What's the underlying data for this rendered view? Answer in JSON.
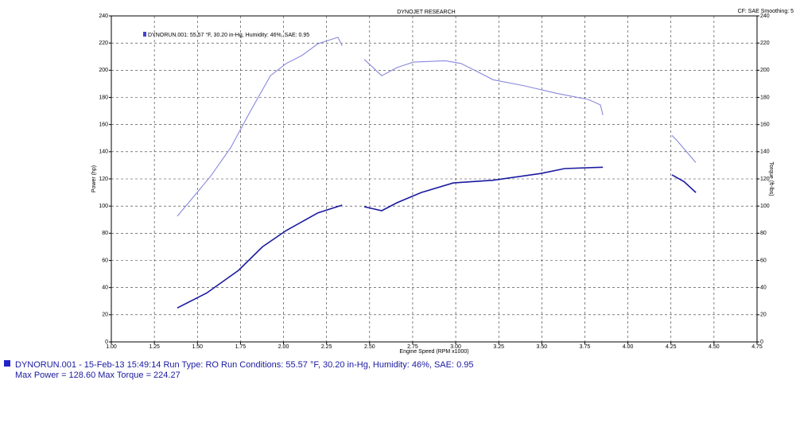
{
  "chart_data": {
    "type": "line",
    "title": "DYNOJET RESEARCH",
    "corner_note": "CF: SAE Smoothing: 5",
    "legend": "DYNORUN.001: 55.57 °F, 30.20 in-Hg, Humidity: 46%, SAE: 0.95",
    "xlabel": "Engine Speed (RPM x1000)",
    "ylabel": "Power (hp)",
    "y2label": "Torque (ft-lbs)",
    "xlim": [
      1.0,
      4.75
    ],
    "xticks": [
      {
        "value": 1.0,
        "label": "1.00"
      },
      {
        "value": 1.25,
        "label": "1.25"
      },
      {
        "value": 1.5,
        "label": "1.50"
      },
      {
        "value": 1.75,
        "label": "1.75"
      },
      {
        "value": 2.0,
        "label": "2.00"
      },
      {
        "value": 2.25,
        "label": "2.25"
      },
      {
        "value": 2.5,
        "label": "2.50"
      },
      {
        "value": 2.75,
        "label": "2.75"
      },
      {
        "value": 3.0,
        "label": "3.00"
      },
      {
        "value": 3.25,
        "label": "3.25"
      },
      {
        "value": 3.5,
        "label": "3.50"
      },
      {
        "value": 3.75,
        "label": "3.75"
      },
      {
        "value": 4.0,
        "label": "4.00"
      },
      {
        "value": 4.25,
        "label": "4.25"
      },
      {
        "value": 4.5,
        "label": "4.50"
      },
      {
        "value": 4.75,
        "label": "4.75"
      }
    ],
    "ylim": [
      0,
      240
    ],
    "yticks": [
      0,
      20,
      40,
      60,
      80,
      100,
      120,
      140,
      160,
      180,
      200,
      220,
      240
    ],
    "y2lim": [
      0,
      240
    ],
    "y2ticks": [
      0,
      20,
      40,
      60,
      80,
      100,
      120,
      140,
      160,
      180,
      200,
      220,
      240
    ],
    "grid": true,
    "series": [
      {
        "color": "#8888dd",
        "axis": "y2",
        "x": [
          1.383,
          1.485,
          1.577,
          1.693,
          1.808,
          1.924,
          2.016,
          2.109,
          2.2,
          2.316,
          2.34,
          null,
          2.469,
          2.57,
          2.66,
          2.755,
          2.94,
          3.03,
          3.125,
          3.217,
          3.4,
          3.587,
          3.77,
          3.84,
          3.855,
          null,
          4.256,
          4.28,
          4.395
        ],
        "values": [
          92.5,
          108,
          122,
          143,
          170,
          196,
          205,
          211,
          219.5,
          224.27,
          218,
          null,
          208,
          196,
          202,
          206,
          207,
          205,
          199,
          193,
          188.5,
          183,
          178.5,
          174.5,
          167,
          null,
          152,
          149,
          132
        ]
      },
      {
        "color": "#1a1aa0",
        "x": [
          1.383,
          1.554,
          1.739,
          1.878,
          2.016,
          2.2,
          2.34,
          null,
          2.469,
          2.57,
          2.66,
          2.8,
          2.986,
          3.217,
          3.494,
          3.633,
          3.855,
          null,
          4.256,
          4.326,
          4.395
        ],
        "values": [
          25,
          36,
          52.7,
          70,
          82,
          95,
          100.7,
          null,
          99.5,
          96.6,
          102.5,
          110,
          117,
          119,
          124,
          127.6,
          128.6,
          null,
          123,
          118,
          110
        ]
      }
    ],
    "footer": [
      "DYNORUN.001 - 15-Feb-13 15:49:14  Run Type: RO  Run Conditions: 55.57 °F, 30.20 in-Hg,  Humidity:  46%, SAE: 0.95",
      "Max Power = 128.60  Max Torque = 224.27"
    ]
  }
}
